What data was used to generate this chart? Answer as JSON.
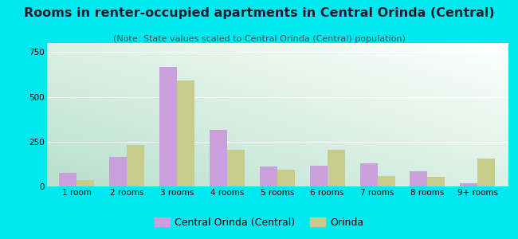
{
  "title": "Rooms in renter-occupied apartments in Central Orinda (Central)",
  "subtitle": "(Note: State values scaled to Central Orinda (Central) population)",
  "categories": [
    "1 room",
    "2 rooms",
    "3 rooms",
    "4 rooms",
    "5 rooms",
    "6 rooms",
    "7 rooms",
    "8 rooms",
    "9+ rooms"
  ],
  "central_values": [
    75,
    165,
    665,
    315,
    110,
    115,
    130,
    85,
    20
  ],
  "orinda_values": [
    35,
    230,
    590,
    205,
    95,
    205,
    60,
    55,
    155
  ],
  "central_color": "#c9a0dc",
  "orinda_color": "#c8cc8a",
  "background_outer": "#00e8f0",
  "ylim": [
    0,
    800
  ],
  "yticks": [
    0,
    250,
    500,
    750
  ],
  "bar_width": 0.35,
  "legend_label_central": "Central Orinda (Central)",
  "legend_label_orinda": "Orinda",
  "title_fontsize": 11.5,
  "subtitle_fontsize": 8,
  "tick_fontsize": 7.5,
  "legend_fontsize": 9,
  "title_color": "#1a1a2e",
  "subtitle_color": "#2a5a5a"
}
